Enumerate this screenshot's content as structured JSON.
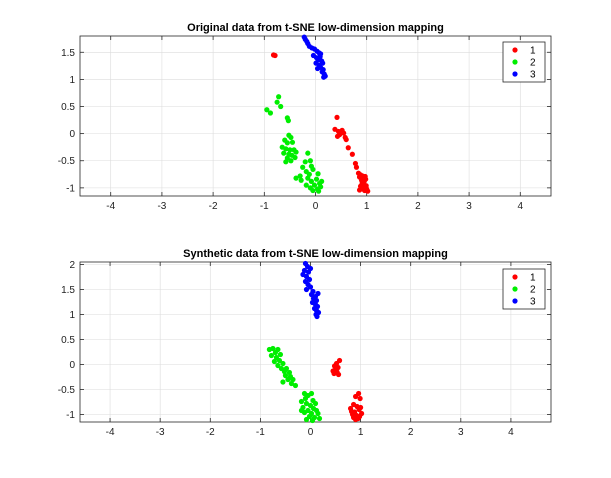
{
  "chart_data": [
    {
      "type": "scatter",
      "title": "Original data from t-SNE low-dimension mapping",
      "xlabel": "",
      "ylabel": "",
      "xlim": [
        -4.6,
        4.6
      ],
      "ylim": [
        -1.15,
        1.8
      ],
      "x_ticks": [
        -4,
        -3,
        -2,
        -1,
        0,
        1,
        2,
        3,
        4
      ],
      "y_ticks": [
        -1,
        -0.5,
        0,
        0.5,
        1,
        1.5
      ],
      "y_tick_labels": [
        "-1",
        "-0.5",
        "0",
        "0.5",
        "1",
        "1.5"
      ],
      "grid": true,
      "legend_placement": "top-right",
      "series": [
        {
          "name": "1",
          "color": "#ff0000",
          "points": [
            [
              -0.82,
              1.45
            ],
            [
              -0.79,
              1.44
            ],
            [
              0.42,
              0.3
            ],
            [
              0.38,
              0.08
            ],
            [
              0.45,
              0.04
            ],
            [
              0.52,
              0.06
            ],
            [
              0.55,
              0.01
            ],
            [
              0.47,
              -0.02
            ],
            [
              0.43,
              -0.05
            ],
            [
              0.58,
              -0.07
            ],
            [
              0.6,
              -0.11
            ],
            [
              0.64,
              -0.26
            ],
            [
              0.72,
              -0.38
            ],
            [
              0.78,
              -0.55
            ],
            [
              0.8,
              -0.62
            ],
            [
              0.84,
              -0.73
            ],
            [
              0.88,
              -0.76
            ],
            [
              0.92,
              -0.78
            ],
            [
              0.86,
              -0.8
            ],
            [
              0.9,
              -0.86
            ],
            [
              0.95,
              -0.88
            ],
            [
              0.98,
              -0.84
            ],
            [
              0.94,
              -0.94
            ],
            [
              0.88,
              -0.97
            ],
            [
              0.92,
              -1.02
            ],
            [
              0.96,
              -1.05
            ],
            [
              1.0,
              -1.02
            ],
            [
              0.99,
              -0.96
            ],
            [
              1.02,
              -1.06
            ],
            [
              0.86,
              -1.04
            ],
            [
              0.97,
              -0.79
            ],
            [
              0.91,
              -0.92
            ]
          ]
        },
        {
          "name": "2",
          "color": "#00ee00",
          "points": [
            [
              -0.72,
              0.68
            ],
            [
              -0.75,
              0.58
            ],
            [
              -0.68,
              0.5
            ],
            [
              -0.95,
              0.44
            ],
            [
              -0.88,
              0.38
            ],
            [
              -0.55,
              0.29
            ],
            [
              -0.53,
              0.24
            ],
            [
              -0.52,
              -0.03
            ],
            [
              -0.48,
              -0.07
            ],
            [
              -0.6,
              -0.12
            ],
            [
              -0.55,
              -0.17
            ],
            [
              -0.45,
              -0.16
            ],
            [
              -0.65,
              -0.25
            ],
            [
              -0.58,
              -0.28
            ],
            [
              -0.5,
              -0.3
            ],
            [
              -0.42,
              -0.3
            ],
            [
              -0.62,
              -0.36
            ],
            [
              -0.52,
              -0.38
            ],
            [
              -0.46,
              -0.4
            ],
            [
              -0.38,
              -0.34
            ],
            [
              -0.55,
              -0.45
            ],
            [
              -0.48,
              -0.5
            ],
            [
              -0.4,
              -0.44
            ],
            [
              -0.58,
              -0.52
            ],
            [
              -0.15,
              -0.36
            ],
            [
              -0.1,
              -0.5
            ],
            [
              -0.2,
              -0.52
            ],
            [
              -0.08,
              -0.6
            ],
            [
              -0.25,
              -0.62
            ],
            [
              -0.18,
              -0.7
            ],
            [
              -0.05,
              -0.66
            ],
            [
              0.05,
              -0.74
            ],
            [
              -0.12,
              -0.75
            ],
            [
              -0.3,
              -0.78
            ],
            [
              -0.38,
              -0.82
            ],
            [
              -0.28,
              -0.86
            ],
            [
              -0.15,
              -0.82
            ],
            [
              -0.08,
              -0.88
            ],
            [
              0.02,
              -0.84
            ],
            [
              0.08,
              -0.92
            ],
            [
              -0.02,
              -0.95
            ],
            [
              -0.1,
              -1.0
            ],
            [
              0.04,
              -1.02
            ],
            [
              0.1,
              -0.98
            ],
            [
              -0.05,
              -1.05
            ],
            [
              0.06,
              -1.06
            ],
            [
              0.12,
              -0.88
            ],
            [
              -0.18,
              -0.95
            ]
          ]
        },
        {
          "name": "3",
          "color": "#0000ff",
          "points": [
            [
              -0.22,
              1.78
            ],
            [
              -0.2,
              1.74
            ],
            [
              -0.17,
              1.7
            ],
            [
              -0.15,
              1.66
            ],
            [
              -0.12,
              1.61
            ],
            [
              -0.07,
              1.58
            ],
            [
              -0.02,
              1.56
            ],
            [
              0.03,
              1.52
            ],
            [
              0.07,
              1.49
            ],
            [
              0.1,
              1.47
            ],
            [
              -0.04,
              1.44
            ],
            [
              0.02,
              1.4
            ],
            [
              0.09,
              1.42
            ],
            [
              0.05,
              1.36
            ],
            [
              0.12,
              1.34
            ],
            [
              0.14,
              1.3
            ],
            [
              0.01,
              1.3
            ],
            [
              0.07,
              1.26
            ],
            [
              0.1,
              1.22
            ],
            [
              0.15,
              1.18
            ],
            [
              0.13,
              1.14
            ],
            [
              0.17,
              1.1
            ],
            [
              0.19,
              1.06
            ],
            [
              0.16,
              1.04
            ],
            [
              0.04,
              1.2
            ]
          ]
        }
      ]
    },
    {
      "type": "scatter",
      "title": "Synthetic data from t-SNE low-dimension mapping",
      "xlabel": "",
      "ylabel": "",
      "xlim": [
        -4.6,
        4.8
      ],
      "ylim": [
        -1.15,
        2.05
      ],
      "x_ticks": [
        -4,
        -3,
        -2,
        -1,
        0,
        1,
        2,
        3,
        4
      ],
      "y_ticks": [
        -1,
        -0.5,
        0,
        0.5,
        1,
        1.5,
        2
      ],
      "y_tick_labels": [
        "-1",
        "-0.5",
        "0",
        "0.5",
        "1",
        "1.5",
        "2"
      ],
      "grid": true,
      "legend_placement": "top-right",
      "series": [
        {
          "name": "1",
          "color": "#ff0000",
          "points": [
            [
              0.58,
              0.08
            ],
            [
              0.52,
              0.02
            ],
            [
              0.48,
              -0.03
            ],
            [
              0.55,
              -0.06
            ],
            [
              0.5,
              -0.1
            ],
            [
              0.45,
              -0.13
            ],
            [
              0.53,
              -0.15
            ],
            [
              0.47,
              -0.18
            ],
            [
              0.56,
              -0.2
            ],
            [
              0.96,
              -0.58
            ],
            [
              0.9,
              -0.64
            ],
            [
              0.99,
              -0.68
            ],
            [
              0.86,
              -0.8
            ],
            [
              0.93,
              -0.84
            ],
            [
              0.8,
              -0.88
            ],
            [
              0.97,
              -0.9
            ],
            [
              0.88,
              -0.95
            ],
            [
              0.84,
              -1.0
            ],
            [
              0.92,
              -1.02
            ],
            [
              0.98,
              -1.04
            ],
            [
              1.02,
              -0.98
            ],
            [
              0.86,
              -1.06
            ],
            [
              0.95,
              -1.08
            ],
            [
              1.0,
              -0.86
            ],
            [
              0.9,
              -1.1
            ],
            [
              0.82,
              -0.94
            ]
          ]
        },
        {
          "name": "2",
          "color": "#00ee00",
          "points": [
            [
              -0.82,
              0.3
            ],
            [
              -0.75,
              0.32
            ],
            [
              -0.65,
              0.3
            ],
            [
              -0.7,
              0.24
            ],
            [
              -0.6,
              0.2
            ],
            [
              -0.78,
              0.18
            ],
            [
              -0.68,
              0.14
            ],
            [
              -0.72,
              0.06
            ],
            [
              -0.62,
              0.08
            ],
            [
              -0.55,
              0.02
            ],
            [
              -0.65,
              -0.02
            ],
            [
              -0.58,
              -0.08
            ],
            [
              -0.48,
              -0.08
            ],
            [
              -0.52,
              -0.14
            ],
            [
              -0.42,
              -0.16
            ],
            [
              -0.5,
              -0.22
            ],
            [
              -0.4,
              -0.24
            ],
            [
              -0.45,
              -0.3
            ],
            [
              -0.35,
              -0.3
            ],
            [
              -0.55,
              -0.35
            ],
            [
              -0.38,
              -0.38
            ],
            [
              -0.3,
              -0.42
            ],
            [
              -0.12,
              -0.58
            ],
            [
              -0.05,
              -0.62
            ],
            [
              0.02,
              -0.58
            ],
            [
              -0.1,
              -0.68
            ],
            [
              0.05,
              -0.72
            ],
            [
              -0.18,
              -0.74
            ],
            [
              -0.08,
              -0.78
            ],
            [
              0.1,
              -0.78
            ],
            [
              0.0,
              -0.82
            ],
            [
              -0.15,
              -0.86
            ],
            [
              0.06,
              -0.88
            ],
            [
              -0.05,
              -0.92
            ],
            [
              0.12,
              -0.92
            ],
            [
              -0.12,
              -0.96
            ],
            [
              0.02,
              -0.98
            ],
            [
              0.15,
              -0.98
            ],
            [
              -0.02,
              -1.04
            ],
            [
              0.08,
              -1.06
            ],
            [
              -0.18,
              -0.92
            ],
            [
              0.18,
              -1.08
            ],
            [
              -0.08,
              -1.1
            ],
            [
              0.04,
              -1.12
            ]
          ]
        },
        {
          "name": "3",
          "color": "#0000ff",
          "points": [
            [
              -0.1,
              2.02
            ],
            [
              -0.06,
              1.96
            ],
            [
              0.0,
              1.92
            ],
            [
              -0.12,
              1.88
            ],
            [
              -0.04,
              1.85
            ],
            [
              -0.15,
              1.8
            ],
            [
              -0.08,
              1.76
            ],
            [
              -0.02,
              1.7
            ],
            [
              -0.1,
              1.66
            ],
            [
              -0.05,
              1.6
            ],
            [
              0.0,
              1.55
            ],
            [
              -0.08,
              1.5
            ],
            [
              0.05,
              1.46
            ],
            [
              0.02,
              1.4
            ],
            [
              0.1,
              1.36
            ],
            [
              0.06,
              1.32
            ],
            [
              0.12,
              1.28
            ],
            [
              0.04,
              1.24
            ],
            [
              0.1,
              1.2
            ],
            [
              0.14,
              1.16
            ],
            [
              0.08,
              1.12
            ],
            [
              0.12,
              1.08
            ],
            [
              0.16,
              1.04
            ],
            [
              0.11,
              1.0
            ],
            [
              0.13,
              0.96
            ],
            [
              0.15,
              1.42
            ]
          ]
        }
      ]
    }
  ]
}
